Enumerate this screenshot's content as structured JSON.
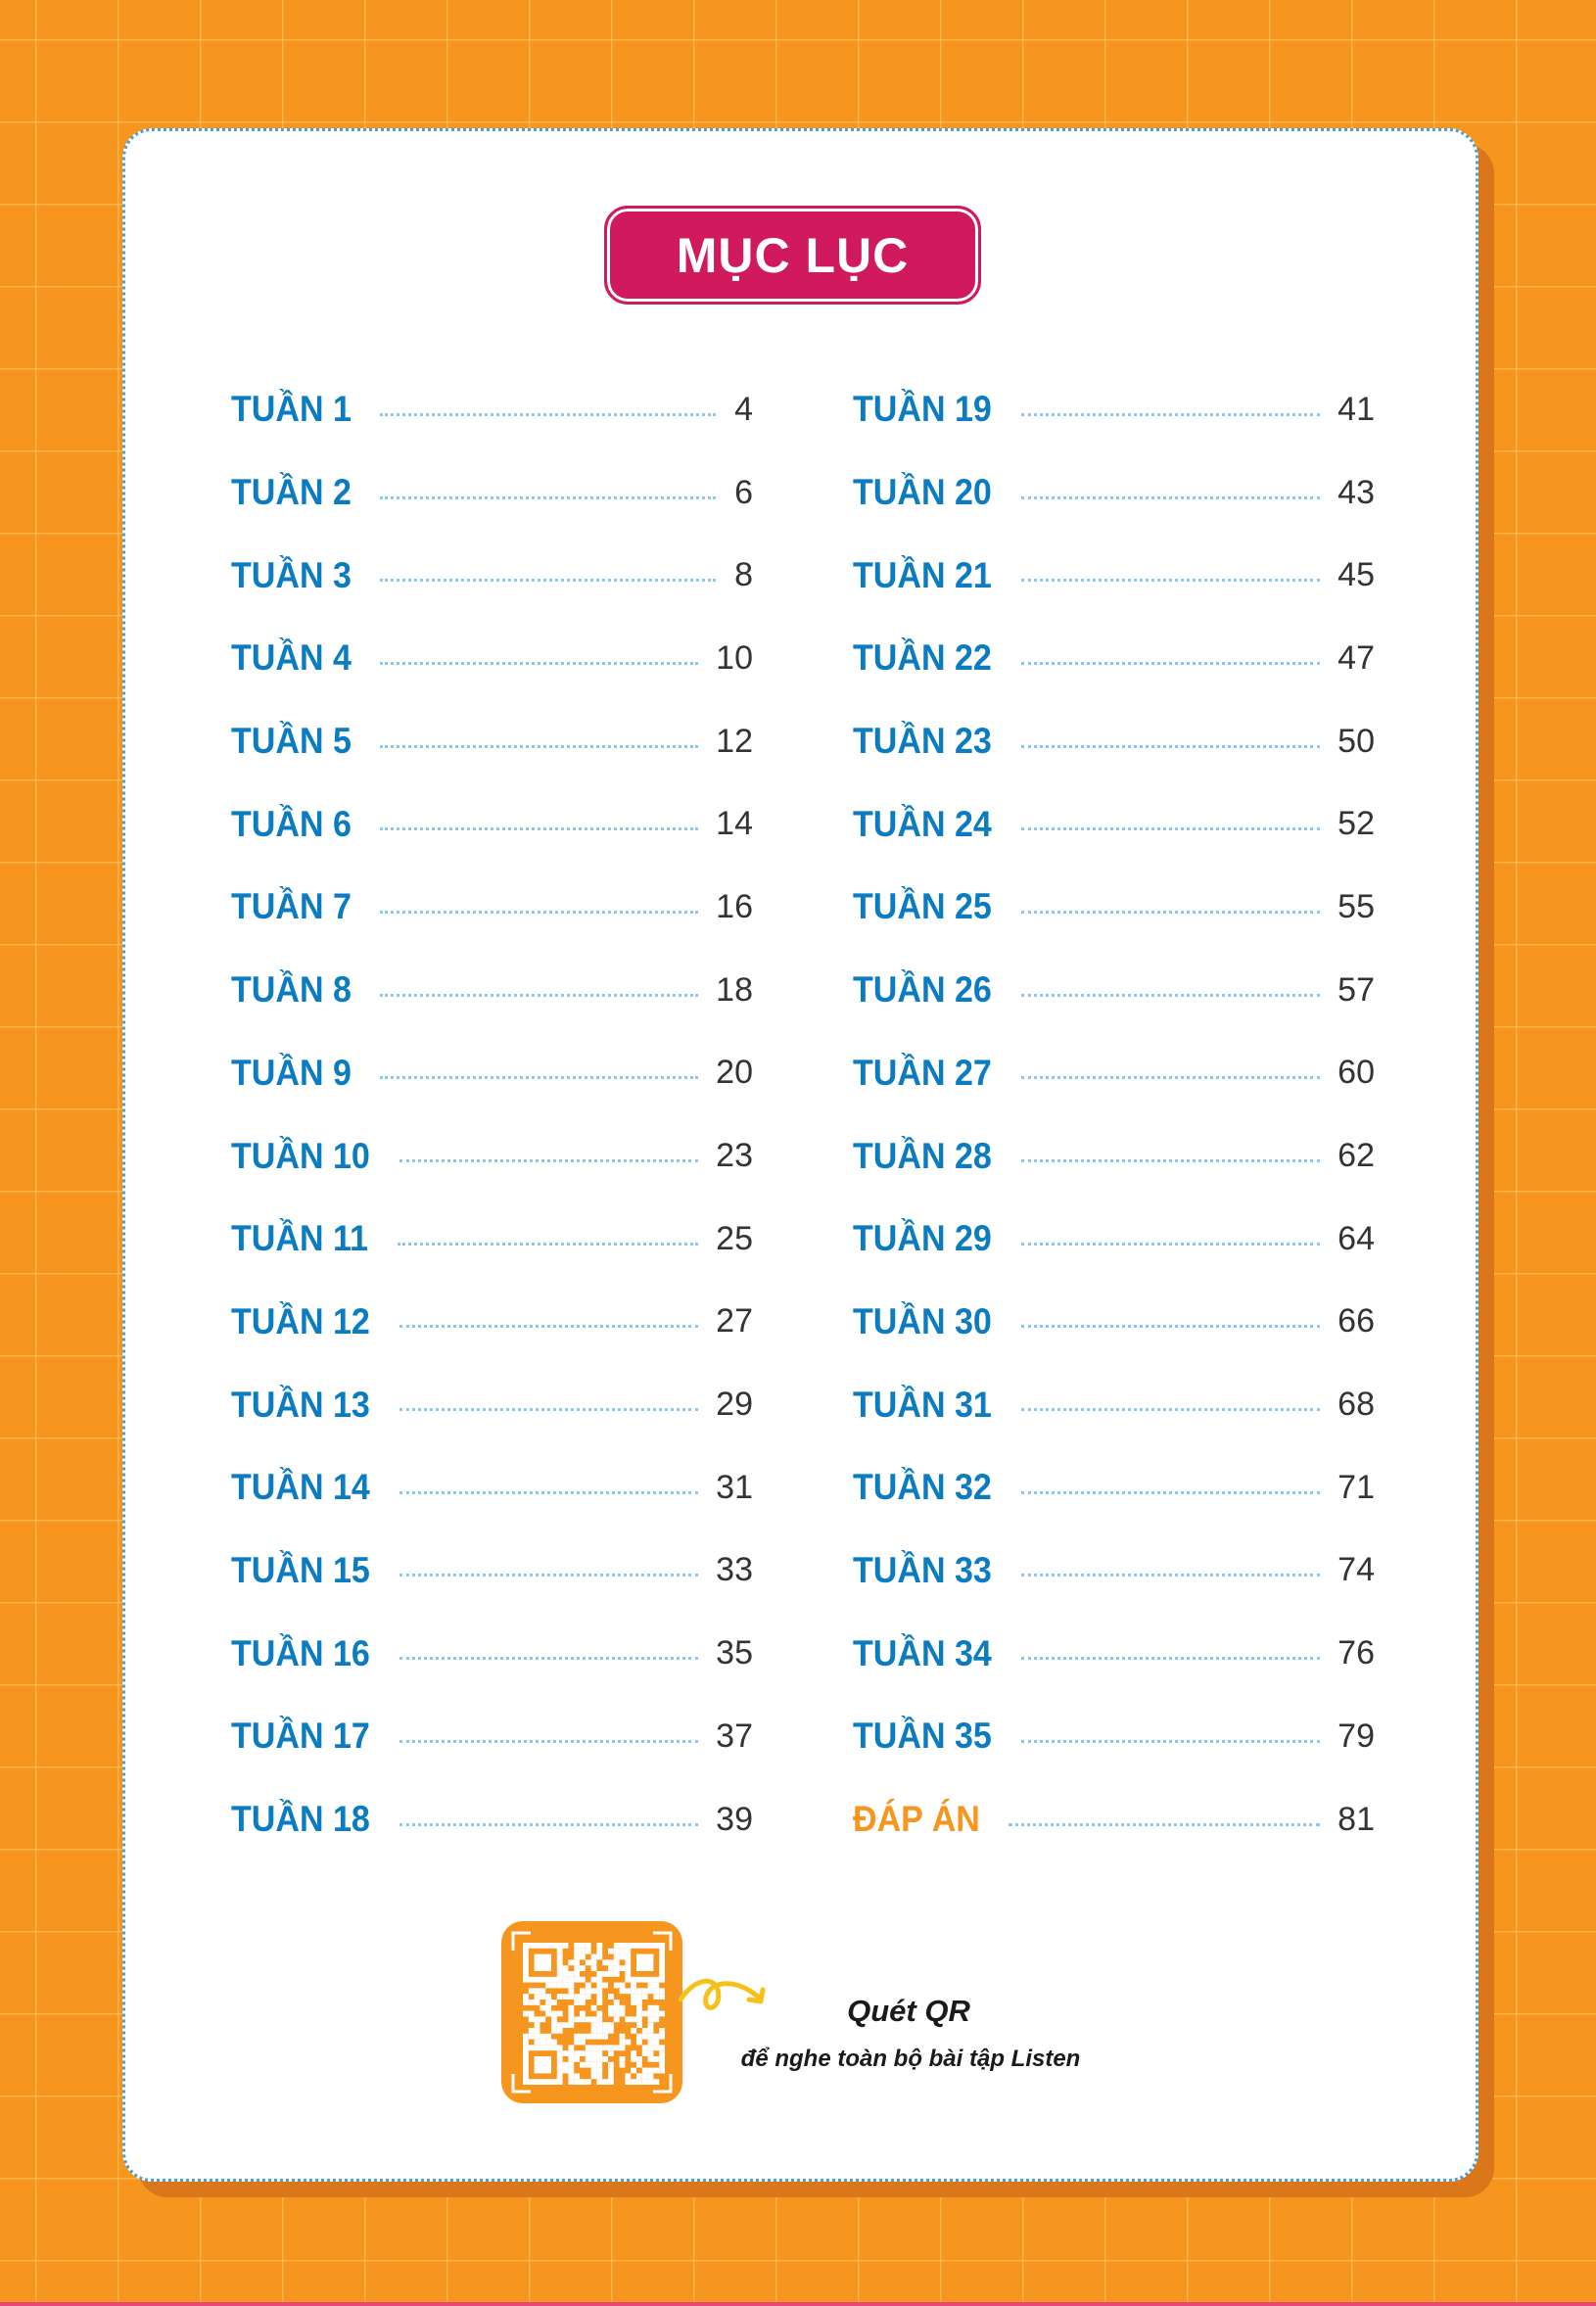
{
  "title": "MỤC LỤC",
  "left_entries": [
    {
      "label": "TUẦN 1",
      "page": "4"
    },
    {
      "label": "TUẦN 2",
      "page": "6"
    },
    {
      "label": "TUẦN 3",
      "page": "8"
    },
    {
      "label": "TUẦN 4",
      "page": "10"
    },
    {
      "label": "TUẦN 5",
      "page": "12"
    },
    {
      "label": "TUẦN 6",
      "page": "14"
    },
    {
      "label": "TUẦN 7",
      "page": "16"
    },
    {
      "label": "TUẦN 8",
      "page": "18"
    },
    {
      "label": "TUẦN 9",
      "page": "20"
    },
    {
      "label": "TUẦN 10",
      "page": "23"
    },
    {
      "label": "TUẦN 11",
      "page": "25"
    },
    {
      "label": "TUẦN 12",
      "page": "27"
    },
    {
      "label": "TUẦN 13",
      "page": "29"
    },
    {
      "label": "TUẦN 14",
      "page": "31"
    },
    {
      "label": "TUẦN 15",
      "page": "33"
    },
    {
      "label": "TUẦN 16",
      "page": "35"
    },
    {
      "label": "TUẦN 17",
      "page": "37"
    },
    {
      "label": "TUẦN 18",
      "page": "39"
    }
  ],
  "right_entries": [
    {
      "label": "TUẦN 19",
      "page": "41"
    },
    {
      "label": "TUẦN 20",
      "page": "43"
    },
    {
      "label": "TUẦN 21",
      "page": "45"
    },
    {
      "label": "TUẦN 22",
      "page": "47"
    },
    {
      "label": "TUẦN 23",
      "page": "50"
    },
    {
      "label": "TUẦN 24",
      "page": "52"
    },
    {
      "label": "TUẦN 25",
      "page": "55"
    },
    {
      "label": "TUẦN 26",
      "page": "57"
    },
    {
      "label": "TUẦN 27",
      "page": "60"
    },
    {
      "label": "TUẦN 28",
      "page": "62"
    },
    {
      "label": "TUẦN 29",
      "page": "64"
    },
    {
      "label": "TUẦN 30",
      "page": "66"
    },
    {
      "label": "TUẦN 31",
      "page": "68"
    },
    {
      "label": "TUẦN 32",
      "page": "71"
    },
    {
      "label": "TUẦN 33",
      "page": "74"
    },
    {
      "label": "TUẦN 34",
      "page": "76"
    },
    {
      "label": "TUẦN 35",
      "page": "79"
    },
    {
      "label": "ĐÁP ÁN",
      "page": "81",
      "answer": true
    }
  ],
  "qr": {
    "title": "Quét QR",
    "subtitle": "để nghe toàn bộ bài tập Listen",
    "icon": "qr-code-icon"
  },
  "colors": {
    "background": "#F7961F",
    "title_badge": "#D11A5E",
    "entry_label": "#0B7CC1",
    "answer_label": "#F7961F",
    "dots": "#8CC8EE"
  }
}
